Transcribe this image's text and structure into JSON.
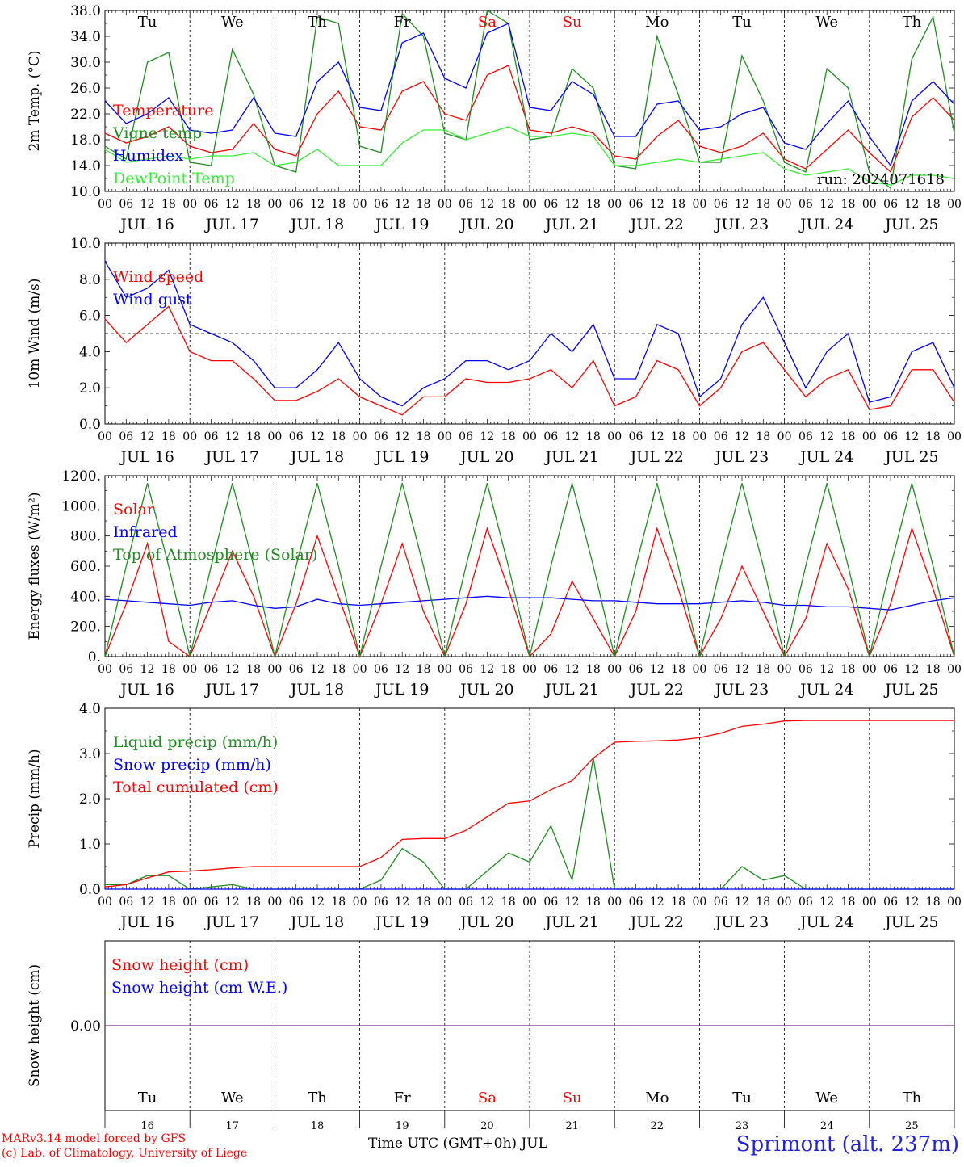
{
  "colors": {
    "red": "#ff0000",
    "green": "#1e8c1e",
    "blue": "#0000ff",
    "lightgreen": "#33ee33",
    "purple": "#7a28a0",
    "black": "#000000"
  },
  "days": {
    "top_labels": [
      "Tu",
      "We",
      "Th",
      "Fr",
      "Sa",
      "Su",
      "Mo",
      "Tu",
      "We",
      "Th"
    ],
    "weekend_indices": [
      4,
      5
    ],
    "date_labels": [
      "JUL 16",
      "JUL 17",
      "JUL 18",
      "JUL 19",
      "JUL 20",
      "JUL 21",
      "JUL 22",
      "JUL 23",
      "JUL 24",
      "JUL 25"
    ],
    "day_numbers": [
      "16",
      "17",
      "18",
      "19",
      "20",
      "21",
      "22",
      "23",
      "24",
      "25"
    ],
    "hour_labels": [
      "00",
      "06",
      "12",
      "18"
    ],
    "final_hour_label": "00"
  },
  "footer": {
    "model_line": "MARv3.14 model forced by GFS",
    "lab_line": "(c) Lab. of Climatology, University of Liege",
    "time_label": "Time UTC (GMT+0h) JUL",
    "station": "Sprimont (alt. 237m)"
  },
  "chart_data": [
    {
      "type": "line",
      "id": "temperature",
      "ylabel": "2m Temp. (°C)",
      "ylim": [
        10,
        38
      ],
      "yticks": [
        10,
        14,
        18,
        22,
        26,
        30,
        34,
        38
      ],
      "ytick_labels": [
        "10.0",
        "14.0",
        "18.0",
        "22.0",
        "26.0",
        "30.0",
        "34.0",
        "38.0"
      ],
      "run_label": "run: 2024071618",
      "legend": [
        {
          "text": "Temperature",
          "color": "#ff0000"
        },
        {
          "text": "Vigne temp",
          "color": "#1e8c1e"
        },
        {
          "text": "Humidex",
          "color": "#0000ff"
        },
        {
          "text": "DewPoint Temp",
          "color": "#33ee33"
        }
      ],
      "x_hours_step": 6,
      "series": [
        {
          "name": "Temperature",
          "color": "#ff0000",
          "values": [
            19.0,
            17.5,
            18.5,
            20.0,
            17.0,
            16.0,
            16.5,
            20.5,
            16.5,
            15.5,
            22.0,
            25.5,
            20.0,
            19.5,
            25.5,
            27.0,
            22.0,
            21.0,
            28.0,
            29.5,
            19.5,
            19.0,
            20.0,
            19.0,
            15.5,
            15.0,
            18.5,
            21.0,
            17.0,
            16.0,
            17.0,
            19.0,
            15.0,
            13.5,
            16.5,
            19.5,
            16.0,
            13.0,
            21.5,
            24.5,
            21.0
          ]
        },
        {
          "name": "Vigne temp",
          "color": "#1e8c1e",
          "values": [
            17.0,
            15.0,
            30.0,
            31.5,
            14.5,
            14.0,
            32.0,
            25.0,
            14.0,
            13.0,
            37.0,
            36.0,
            17.0,
            16.0,
            37.5,
            34.0,
            19.0,
            18.0,
            38.0,
            36.0,
            18.0,
            18.5,
            29.0,
            26.0,
            14.0,
            13.5,
            34.0,
            25.0,
            14.5,
            14.5,
            31.0,
            24.0,
            14.5,
            13.0,
            29.0,
            26.0,
            13.0,
            10.5,
            30.5,
            37.0,
            19.0
          ]
        },
        {
          "name": "Humidex",
          "color": "#0000ff",
          "values": [
            24.0,
            20.5,
            22.0,
            24.5,
            19.5,
            19.0,
            19.5,
            24.5,
            19.0,
            18.5,
            27.0,
            30.0,
            23.0,
            22.5,
            33.0,
            34.5,
            27.5,
            26.0,
            34.5,
            36.0,
            23.0,
            22.5,
            27.0,
            25.0,
            18.5,
            18.5,
            23.5,
            24.0,
            19.5,
            20.0,
            22.0,
            23.0,
            17.5,
            16.5,
            20.5,
            24.0,
            18.5,
            14.0,
            24.0,
            27.0,
            23.5
          ]
        },
        {
          "name": "DewPoint Temp",
          "color": "#33ee33",
          "values": [
            16.5,
            14.5,
            15.0,
            15.5,
            15.0,
            15.5,
            15.5,
            16.0,
            14.0,
            14.5,
            16.5,
            14.0,
            14.0,
            14.0,
            17.5,
            19.5,
            19.5,
            18.0,
            19.0,
            20.0,
            18.5,
            18.5,
            19.0,
            18.5,
            14.0,
            14.0,
            14.5,
            15.0,
            14.5,
            15.0,
            15.5,
            16.0,
            13.5,
            12.5,
            13.0,
            13.5,
            11.5,
            11.0,
            12.5,
            12.5,
            12.0
          ]
        }
      ]
    },
    {
      "type": "line",
      "id": "wind",
      "ylabel": "10m Wind (m/s)",
      "ylim": [
        0,
        10
      ],
      "yticks": [
        0,
        2,
        4,
        6,
        8,
        10
      ],
      "ytick_labels": [
        "0.0",
        "2.0",
        "4.0",
        "6.0",
        "8.0",
        "10.0"
      ],
      "reference_line": 5,
      "legend": [
        {
          "text": "Wind speed",
          "color": "#ff0000"
        },
        {
          "text": "Wind gust",
          "color": "#0000ff"
        }
      ],
      "x_hours_step": 6,
      "series": [
        {
          "name": "Wind speed",
          "color": "#ff0000",
          "values": [
            5.8,
            4.5,
            5.5,
            6.5,
            4.0,
            3.5,
            3.5,
            2.5,
            1.3,
            1.3,
            1.8,
            2.5,
            1.5,
            1.0,
            0.5,
            1.5,
            1.5,
            2.5,
            2.3,
            2.3,
            2.5,
            3.0,
            2.0,
            3.5,
            1.0,
            1.5,
            3.5,
            3.0,
            1.0,
            2.0,
            4.0,
            4.5,
            3.0,
            1.5,
            2.5,
            3.0,
            0.8,
            1.0,
            3.0,
            3.0,
            1.2
          ]
        },
        {
          "name": "Wind gust",
          "color": "#0000ff",
          "values": [
            9.0,
            7.0,
            7.5,
            8.5,
            5.5,
            5.0,
            4.5,
            3.5,
            2.0,
            2.0,
            3.0,
            4.5,
            2.5,
            1.5,
            1.0,
            2.0,
            2.5,
            3.5,
            3.5,
            3.0,
            3.5,
            5.0,
            4.0,
            5.5,
            2.5,
            2.5,
            5.5,
            5.0,
            1.5,
            2.5,
            5.5,
            7.0,
            4.5,
            2.0,
            4.0,
            5.0,
            1.2,
            1.5,
            4.0,
            4.5,
            2.0
          ]
        }
      ]
    },
    {
      "type": "line",
      "id": "energy",
      "ylabel": "Energy fluxes (W/m²)",
      "ylim": [
        0,
        1200
      ],
      "yticks": [
        0,
        200,
        400,
        600,
        800,
        1000,
        1200
      ],
      "ytick_labels": [
        "0.",
        "200.",
        "400.",
        "600.",
        "800.",
        "1000.",
        "1200."
      ],
      "legend": [
        {
          "text": "Solar",
          "color": "#ff0000"
        },
        {
          "text": "Infrared",
          "color": "#0000ff"
        },
        {
          "text": "Top of Atmosphere (Solar)",
          "color": "#1e8c1e"
        }
      ],
      "x_hours_step": 6,
      "series": [
        {
          "name": "Solar",
          "color": "#ff0000",
          "values": [
            0,
            350,
            750,
            100,
            0,
            350,
            700,
            400,
            0,
            350,
            800,
            400,
            0,
            350,
            750,
            300,
            0,
            350,
            850,
            450,
            0,
            150,
            500,
            250,
            0,
            300,
            850,
            450,
            0,
            250,
            600,
            300,
            0,
            250,
            750,
            450,
            0,
            350,
            850,
            450,
            0
          ]
        },
        {
          "name": "Infrared",
          "color": "#0000ff",
          "values": [
            380,
            370,
            360,
            350,
            340,
            360,
            370,
            340,
            320,
            330,
            380,
            350,
            340,
            350,
            360,
            370,
            380,
            390,
            400,
            390,
            390,
            390,
            380,
            370,
            370,
            360,
            350,
            350,
            350,
            360,
            370,
            360,
            340,
            340,
            330,
            330,
            320,
            310,
            340,
            370,
            390
          ]
        },
        {
          "name": "Top of Atmosphere (Solar)",
          "color": "#1e8c1e",
          "values": [
            0,
            600,
            1150,
            600,
            0,
            600,
            1150,
            600,
            0,
            600,
            1150,
            600,
            0,
            600,
            1150,
            600,
            0,
            600,
            1150,
            600,
            0,
            600,
            1150,
            600,
            0,
            600,
            1150,
            600,
            0,
            600,
            1150,
            600,
            0,
            600,
            1150,
            600,
            0,
            600,
            1150,
            600,
            0
          ]
        }
      ]
    },
    {
      "type": "line",
      "id": "precip",
      "ylabel": "Precip (mm/h)",
      "ylim": [
        0,
        4
      ],
      "yticks": [
        0,
        1,
        2,
        3,
        4
      ],
      "ytick_labels": [
        "0.0",
        "1.0",
        "2.0",
        "3.0",
        "4.0"
      ],
      "legend": [
        {
          "text": "Liquid precip (mm/h)",
          "color": "#1e8c1e"
        },
        {
          "text": "Snow precip (mm/h)",
          "color": "#0000ff"
        },
        {
          "text": "Total cumulated (cm)",
          "color": "#ff0000"
        }
      ],
      "x_hours_step": 6,
      "series": [
        {
          "name": "Liquid precip (mm/h)",
          "color": "#1e8c1e",
          "values": [
            0.1,
            0.1,
            0.3,
            0.3,
            0,
            0.05,
            0.1,
            0,
            0,
            0,
            0,
            0,
            0,
            0.2,
            0.9,
            0.6,
            0,
            0,
            0.4,
            0.8,
            0.6,
            1.4,
            0.2,
            2.9,
            0,
            0,
            0,
            0,
            0,
            0,
            0.5,
            0.2,
            0.3,
            0,
            0,
            0,
            0,
            0,
            0,
            0,
            0
          ]
        },
        {
          "name": "Snow precip (mm/h)",
          "color": "#0000ff",
          "values": [
            0,
            0,
            0,
            0,
            0,
            0,
            0,
            0,
            0,
            0,
            0,
            0,
            0,
            0,
            0,
            0,
            0,
            0,
            0,
            0,
            0,
            0,
            0,
            0,
            0,
            0,
            0,
            0,
            0,
            0,
            0,
            0,
            0,
            0,
            0,
            0,
            0,
            0,
            0,
            0,
            0
          ]
        },
        {
          "name": "Total cumulated (cm)",
          "color": "#ff0000",
          "values": [
            0.05,
            0.1,
            0.25,
            0.38,
            0.4,
            0.43,
            0.47,
            0.5,
            0.5,
            0.5,
            0.5,
            0.5,
            0.5,
            0.7,
            1.1,
            1.12,
            1.12,
            1.3,
            1.6,
            1.9,
            1.95,
            2.2,
            2.4,
            2.9,
            3.25,
            3.27,
            3.28,
            3.3,
            3.35,
            3.45,
            3.6,
            3.65,
            3.72,
            3.73,
            3.73,
            3.73,
            3.73,
            3.73,
            3.73,
            3.73,
            3.73
          ]
        }
      ]
    },
    {
      "type": "line",
      "id": "snow",
      "ylabel": "Snow height (cm)",
      "ylim": [
        -1,
        1
      ],
      "yticks": [
        0
      ],
      "ytick_labels": [
        "0.00"
      ],
      "legend": [
        {
          "text": "Snow height (cm)",
          "color": "#ff0000"
        },
        {
          "text": "Snow height (cm W.E.)",
          "color": "#0000ff"
        }
      ],
      "x_hours_step": 240,
      "series": [
        {
          "name": "Snow height",
          "color": "#7a28a0",
          "values": [
            0,
            0
          ]
        }
      ]
    }
  ]
}
